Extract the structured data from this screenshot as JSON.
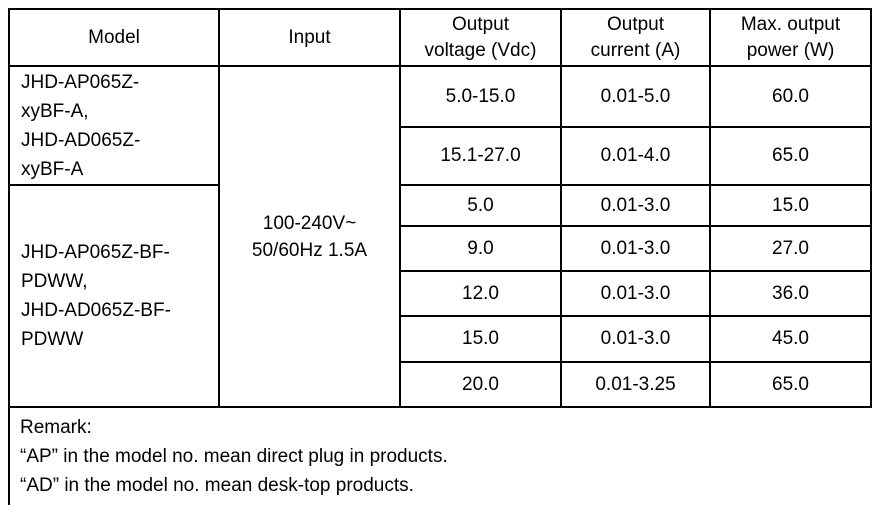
{
  "colors": {
    "background": "#ffffff",
    "border": "#000000",
    "text": "#000000"
  },
  "table": {
    "headers": [
      "Model",
      "Input",
      "Output\nvoltage (Vdc)",
      "Output\ncurrent (A)",
      "Max. output\npower (W)"
    ],
    "model_groups": [
      "JHD-AP065Z-\nxyBF-A,\nJHD-AD065Z-\nxyBF-A",
      "JHD-AP065Z-BF-\nPDWW,\nJHD-AD065Z-BF-\nPDWW"
    ],
    "input": "100-240V~\n50/60Hz 1.5A",
    "rows": [
      {
        "voltage": "5.0-15.0",
        "current": "0.01-5.0",
        "power": "60.0"
      },
      {
        "voltage": "15.1-27.0",
        "current": "0.01-4.0",
        "power": "65.0"
      },
      {
        "voltage": "5.0",
        "current": "0.01-3.0",
        "power": "15.0"
      },
      {
        "voltage": "9.0",
        "current": "0.01-3.0",
        "power": "27.0"
      },
      {
        "voltage": "12.0",
        "current": "0.01-3.0",
        "power": "36.0"
      },
      {
        "voltage": "15.0",
        "current": "0.01-3.0",
        "power": "45.0"
      },
      {
        "voltage": "20.0",
        "current": "0.01-3.25",
        "power": "65.0"
      }
    ],
    "remark": {
      "lines": [
        "Remark:",
        "“AP” in the model no. mean direct plug in products.",
        "“AD” in the model no. mean desk-top products."
      ]
    }
  }
}
